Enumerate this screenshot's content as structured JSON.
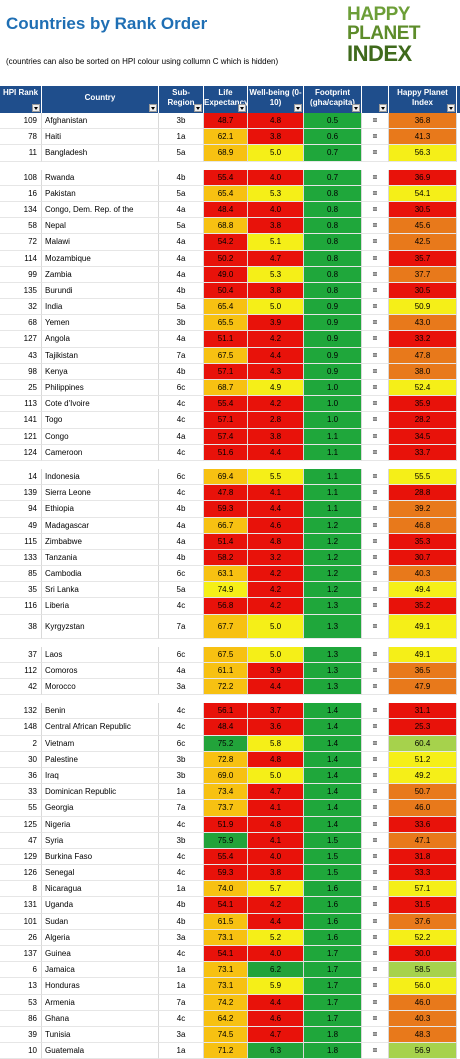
{
  "title": "Countries by Rank Order",
  "subtitle": "(countries can also be sorted on HPI colour using collumn C which is hidden)",
  "logo": {
    "line1": "HAPPY",
    "line2": "PLANET",
    "line3": "INDEX"
  },
  "headers": {
    "rank": "HPI Rank",
    "country": "Country",
    "region": "Sub-Region",
    "life": "Life Expectancy",
    "well": "Well-being (0-10)",
    "foot": "Footprint (gha/capita)",
    "hpi": "Happy Planet Index"
  },
  "colors": {
    "red": "#e8120a",
    "orange": "#e8791b",
    "yellow": "#f5ef18",
    "lgreen": "#a6d24c",
    "green": "#22a33a",
    "amber": "#f7c112"
  },
  "rows": [
    {
      "rank": "109",
      "country": "Afghanistan",
      "region": "3b",
      "life": "48.7",
      "lc": "red",
      "well": "4.8",
      "wc": "red",
      "foot": "0.5",
      "eq": "=",
      "hpi": "36.8",
      "hc": "orange"
    },
    {
      "rank": "78",
      "country": "Haiti",
      "region": "1a",
      "life": "62.1",
      "lc": "amber",
      "well": "3.8",
      "wc": "red",
      "foot": "0.6",
      "eq": "=",
      "hpi": "41.3",
      "hc": "orange"
    },
    {
      "rank": "11",
      "country": "Bangladesh",
      "region": "5a",
      "life": "68.9",
      "lc": "amber",
      "well": "5.0",
      "wc": "yellow",
      "foot": "0.7",
      "eq": "=",
      "hpi": "56.3",
      "hc": "yellow"
    },
    {
      "gap": true
    },
    {
      "rank": "108",
      "country": "Rwanda",
      "region": "4b",
      "life": "55.4",
      "lc": "red",
      "well": "4.0",
      "wc": "red",
      "foot": "0.7",
      "eq": "=",
      "hpi": "36.9",
      "hc": "red"
    },
    {
      "rank": "16",
      "country": "Pakistan",
      "region": "5a",
      "life": "65.4",
      "lc": "amber",
      "well": "5.3",
      "wc": "yellow",
      "foot": "0.8",
      "eq": "=",
      "hpi": "54.1",
      "hc": "yellow"
    },
    {
      "rank": "134",
      "country": "Congo, Dem. Rep. of the",
      "region": "4a",
      "life": "48.4",
      "lc": "red",
      "well": "4.0",
      "wc": "red",
      "foot": "0.8",
      "eq": "=",
      "hpi": "30.5",
      "hc": "red"
    },
    {
      "rank": "58",
      "country": "Nepal",
      "region": "5a",
      "life": "68.8",
      "lc": "amber",
      "well": "3.8",
      "wc": "red",
      "foot": "0.8",
      "eq": "=",
      "hpi": "45.6",
      "hc": "orange"
    },
    {
      "rank": "72",
      "country": "Malawi",
      "region": "4a",
      "life": "54.2",
      "lc": "red",
      "well": "5.1",
      "wc": "yellow",
      "foot": "0.8",
      "eq": "=",
      "hpi": "42.5",
      "hc": "orange"
    },
    {
      "rank": "114",
      "country": "Mozambique",
      "region": "4a",
      "life": "50.2",
      "lc": "red",
      "well": "4.7",
      "wc": "red",
      "foot": "0.8",
      "eq": "=",
      "hpi": "35.7",
      "hc": "red"
    },
    {
      "rank": "99",
      "country": "Zambia",
      "region": "4a",
      "life": "49.0",
      "lc": "red",
      "well": "5.3",
      "wc": "yellow",
      "foot": "0.8",
      "eq": "=",
      "hpi": "37.7",
      "hc": "orange"
    },
    {
      "rank": "135",
      "country": "Burundi",
      "region": "4b",
      "life": "50.4",
      "lc": "red",
      "well": "3.8",
      "wc": "red",
      "foot": "0.8",
      "eq": "=",
      "hpi": "30.5",
      "hc": "red"
    },
    {
      "rank": "32",
      "country": "India",
      "region": "5a",
      "life": "65.4",
      "lc": "amber",
      "well": "5.0",
      "wc": "yellow",
      "foot": "0.9",
      "eq": "=",
      "hpi": "50.9",
      "hc": "yellow"
    },
    {
      "rank": "68",
      "country": "Yemen",
      "region": "3b",
      "life": "65.5",
      "lc": "amber",
      "well": "3.9",
      "wc": "red",
      "foot": "0.9",
      "eq": "=",
      "hpi": "43.0",
      "hc": "orange"
    },
    {
      "rank": "127",
      "country": "Angola",
      "region": "4a",
      "life": "51.1",
      "lc": "red",
      "well": "4.2",
      "wc": "red",
      "foot": "0.9",
      "eq": "=",
      "hpi": "33.2",
      "hc": "red"
    },
    {
      "rank": "43",
      "country": "Tajikistan",
      "region": "7a",
      "life": "67.5",
      "lc": "amber",
      "well": "4.4",
      "wc": "red",
      "foot": "0.9",
      "eq": "=",
      "hpi": "47.8",
      "hc": "orange"
    },
    {
      "rank": "98",
      "country": "Kenya",
      "region": "4b",
      "life": "57.1",
      "lc": "red",
      "well": "4.3",
      "wc": "red",
      "foot": "0.9",
      "eq": "=",
      "hpi": "38.0",
      "hc": "orange"
    },
    {
      "rank": "25",
      "country": "Philippines",
      "region": "6c",
      "life": "68.7",
      "lc": "amber",
      "well": "4.9",
      "wc": "yellow",
      "foot": "1.0",
      "eq": "=",
      "hpi": "52.4",
      "hc": "yellow"
    },
    {
      "rank": "113",
      "country": "Cote d'Ivoire",
      "region": "4c",
      "life": "55.4",
      "lc": "red",
      "well": "4.2",
      "wc": "red",
      "foot": "1.0",
      "eq": "=",
      "hpi": "35.9",
      "hc": "red"
    },
    {
      "rank": "141",
      "country": "Togo",
      "region": "4c",
      "life": "57.1",
      "lc": "red",
      "well": "2.8",
      "wc": "red",
      "foot": "1.0",
      "eq": "=",
      "hpi": "28.2",
      "hc": "red"
    },
    {
      "rank": "121",
      "country": "Congo",
      "region": "4a",
      "life": "57.4",
      "lc": "red",
      "well": "3.8",
      "wc": "red",
      "foot": "1.1",
      "eq": "=",
      "hpi": "34.5",
      "hc": "red"
    },
    {
      "rank": "124",
      "country": "Cameroon",
      "region": "4c",
      "life": "51.6",
      "lc": "red",
      "well": "4.4",
      "wc": "red",
      "foot": "1.1",
      "eq": "=",
      "hpi": "33.7",
      "hc": "red"
    },
    {
      "gap": true
    },
    {
      "rank": "14",
      "country": "Indonesia",
      "region": "6c",
      "life": "69.4",
      "lc": "amber",
      "well": "5.5",
      "wc": "yellow",
      "foot": "1.1",
      "eq": "=",
      "hpi": "55.5",
      "hc": "yellow"
    },
    {
      "rank": "139",
      "country": "Sierra Leone",
      "region": "4c",
      "life": "47.8",
      "lc": "red",
      "well": "4.1",
      "wc": "red",
      "foot": "1.1",
      "eq": "=",
      "hpi": "28.8",
      "hc": "red"
    },
    {
      "rank": "94",
      "country": "Ethiopia",
      "region": "4b",
      "life": "59.3",
      "lc": "red",
      "well": "4.4",
      "wc": "red",
      "foot": "1.1",
      "eq": "=",
      "hpi": "39.2",
      "hc": "orange"
    },
    {
      "rank": "49",
      "country": "Madagascar",
      "region": "4a",
      "life": "66.7",
      "lc": "amber",
      "well": "4.6",
      "wc": "red",
      "foot": "1.2",
      "eq": "=",
      "hpi": "46.8",
      "hc": "orange"
    },
    {
      "rank": "115",
      "country": "Zimbabwe",
      "region": "4a",
      "life": "51.4",
      "lc": "red",
      "well": "4.8",
      "wc": "red",
      "foot": "1.2",
      "eq": "=",
      "hpi": "35.3",
      "hc": "red"
    },
    {
      "rank": "133",
      "country": "Tanzania",
      "region": "4b",
      "life": "58.2",
      "lc": "red",
      "well": "3.2",
      "wc": "red",
      "foot": "1.2",
      "eq": "=",
      "hpi": "30.7",
      "hc": "red"
    },
    {
      "rank": "85",
      "country": "Cambodia",
      "region": "6c",
      "life": "63.1",
      "lc": "amber",
      "well": "4.2",
      "wc": "red",
      "foot": "1.2",
      "eq": "=",
      "hpi": "40.3",
      "hc": "orange"
    },
    {
      "rank": "35",
      "country": "Sri Lanka",
      "region": "5a",
      "life": "74.9",
      "lc": "yellow",
      "well": "4.2",
      "wc": "red",
      "foot": "1.2",
      "eq": "=",
      "hpi": "49.4",
      "hc": "yellow"
    },
    {
      "rank": "116",
      "country": "Liberia",
      "region": "4c",
      "life": "56.8",
      "lc": "red",
      "well": "4.2",
      "wc": "red",
      "foot": "1.3",
      "eq": "=",
      "hpi": "35.2",
      "hc": "red"
    },
    {
      "rank": "38",
      "country": "Kyrgyzstan",
      "region": "7a",
      "life": "67.7",
      "lc": "amber",
      "well": "5.0",
      "wc": "yellow",
      "foot": "1.3",
      "eq": "=",
      "hpi": "49.1",
      "hc": "yellow",
      "tall": true
    },
    {
      "gap": true
    },
    {
      "rank": "37",
      "country": "Laos",
      "region": "6c",
      "life": "67.5",
      "lc": "amber",
      "well": "5.0",
      "wc": "yellow",
      "foot": "1.3",
      "eq": "=",
      "hpi": "49.1",
      "hc": "yellow"
    },
    {
      "rank": "112",
      "country": "Comoros",
      "region": "4a",
      "life": "61.1",
      "lc": "amber",
      "well": "3.9",
      "wc": "red",
      "foot": "1.3",
      "eq": "=",
      "hpi": "36.5",
      "hc": "orange"
    },
    {
      "rank": "42",
      "country": "Morocco",
      "region": "3a",
      "life": "72.2",
      "lc": "amber",
      "well": "4.4",
      "wc": "red",
      "foot": "1.3",
      "eq": "=",
      "hpi": "47.9",
      "hc": "orange"
    },
    {
      "gap": true
    },
    {
      "rank": "132",
      "country": "Benin",
      "region": "4c",
      "life": "56.1",
      "lc": "red",
      "well": "3.7",
      "wc": "red",
      "foot": "1.4",
      "eq": "=",
      "hpi": "31.1",
      "hc": "red"
    },
    {
      "rank": "148",
      "country": "Central African Republic",
      "region": "4c",
      "life": "48.4",
      "lc": "red",
      "well": "3.6",
      "wc": "red",
      "foot": "1.4",
      "eq": "=",
      "hpi": "25.3",
      "hc": "red"
    },
    {
      "rank": "2",
      "country": "Vietnam",
      "region": "6c",
      "life": "75.2",
      "lc": "green",
      "well": "5.8",
      "wc": "yellow",
      "foot": "1.4",
      "eq": "=",
      "hpi": "60.4",
      "hc": "lgreen"
    },
    {
      "rank": "30",
      "country": "Palestine",
      "region": "3b",
      "life": "72.8",
      "lc": "amber",
      "well": "4.8",
      "wc": "red",
      "foot": "1.4",
      "eq": "=",
      "hpi": "51.2",
      "hc": "yellow"
    },
    {
      "rank": "36",
      "country": "Iraq",
      "region": "3b",
      "life": "69.0",
      "lc": "amber",
      "well": "5.0",
      "wc": "yellow",
      "foot": "1.4",
      "eq": "=",
      "hpi": "49.2",
      "hc": "yellow"
    },
    {
      "rank": "33",
      "country": "Dominican Republic",
      "region": "1a",
      "life": "73.4",
      "lc": "amber",
      "well": "4.7",
      "wc": "red",
      "foot": "1.4",
      "eq": "=",
      "hpi": "50.7",
      "hc": "orange"
    },
    {
      "rank": "55",
      "country": "Georgia",
      "region": "7a",
      "life": "73.7",
      "lc": "amber",
      "well": "4.1",
      "wc": "red",
      "foot": "1.4",
      "eq": "=",
      "hpi": "46.0",
      "hc": "orange"
    },
    {
      "rank": "125",
      "country": "Nigeria",
      "region": "4c",
      "life": "51.9",
      "lc": "red",
      "well": "4.8",
      "wc": "red",
      "foot": "1.4",
      "eq": "=",
      "hpi": "33.6",
      "hc": "red"
    },
    {
      "rank": "47",
      "country": "Syria",
      "region": "3b",
      "life": "75.9",
      "lc": "green",
      "well": "4.1",
      "wc": "red",
      "foot": "1.5",
      "eq": "=",
      "hpi": "47.1",
      "hc": "orange"
    },
    {
      "rank": "129",
      "country": "Burkina Faso",
      "region": "4c",
      "life": "55.4",
      "lc": "red",
      "well": "4.0",
      "wc": "red",
      "foot": "1.5",
      "eq": "=",
      "hpi": "31.8",
      "hc": "red"
    },
    {
      "rank": "126",
      "country": "Senegal",
      "region": "4c",
      "life": "59.3",
      "lc": "red",
      "well": "3.8",
      "wc": "red",
      "foot": "1.5",
      "eq": "=",
      "hpi": "33.3",
      "hc": "red"
    },
    {
      "rank": "8",
      "country": "Nicaragua",
      "region": "1a",
      "life": "74.0",
      "lc": "amber",
      "well": "5.7",
      "wc": "yellow",
      "foot": "1.6",
      "eq": "=",
      "hpi": "57.1",
      "hc": "yellow"
    },
    {
      "rank": "131",
      "country": "Uganda",
      "region": "4b",
      "life": "54.1",
      "lc": "red",
      "well": "4.2",
      "wc": "red",
      "foot": "1.6",
      "eq": "=",
      "hpi": "31.5",
      "hc": "red"
    },
    {
      "rank": "101",
      "country": "Sudan",
      "region": "4b",
      "life": "61.5",
      "lc": "amber",
      "well": "4.4",
      "wc": "red",
      "foot": "1.6",
      "eq": "=",
      "hpi": "37.6",
      "hc": "orange"
    },
    {
      "rank": "26",
      "country": "Algeria",
      "region": "3a",
      "life": "73.1",
      "lc": "amber",
      "well": "5.2",
      "wc": "yellow",
      "foot": "1.6",
      "eq": "=",
      "hpi": "52.2",
      "hc": "yellow"
    },
    {
      "rank": "137",
      "country": "Guinea",
      "region": "4c",
      "life": "54.1",
      "lc": "red",
      "well": "4.0",
      "wc": "red",
      "foot": "1.7",
      "eq": "=",
      "hpi": "30.0",
      "hc": "red"
    },
    {
      "rank": "6",
      "country": "Jamaica",
      "region": "1a",
      "life": "73.1",
      "lc": "amber",
      "well": "6.2",
      "wc": "green",
      "foot": "1.7",
      "eq": "=",
      "hpi": "58.5",
      "hc": "lgreen"
    },
    {
      "rank": "13",
      "country": "Honduras",
      "region": "1a",
      "life": "73.1",
      "lc": "amber",
      "well": "5.9",
      "wc": "yellow",
      "foot": "1.7",
      "eq": "=",
      "hpi": "56.0",
      "hc": "yellow"
    },
    {
      "rank": "53",
      "country": "Armenia",
      "region": "7a",
      "life": "74.2",
      "lc": "amber",
      "well": "4.4",
      "wc": "red",
      "foot": "1.7",
      "eq": "=",
      "hpi": "46.0",
      "hc": "orange"
    },
    {
      "rank": "86",
      "country": "Ghana",
      "region": "4c",
      "life": "64.2",
      "lc": "amber",
      "well": "4.6",
      "wc": "red",
      "foot": "1.7",
      "eq": "=",
      "hpi": "40.3",
      "hc": "orange"
    },
    {
      "rank": "39",
      "country": "Tunisia",
      "region": "3a",
      "life": "74.5",
      "lc": "amber",
      "well": "4.7",
      "wc": "red",
      "foot": "1.8",
      "eq": "=",
      "hpi": "48.3",
      "hc": "orange"
    },
    {
      "rank": "10",
      "country": "Guatemala",
      "region": "1a",
      "life": "71.2",
      "lc": "amber",
      "well": "6.3",
      "wc": "green",
      "foot": "1.8",
      "eq": "=",
      "hpi": "56.9",
      "hc": "lgreen"
    }
  ]
}
